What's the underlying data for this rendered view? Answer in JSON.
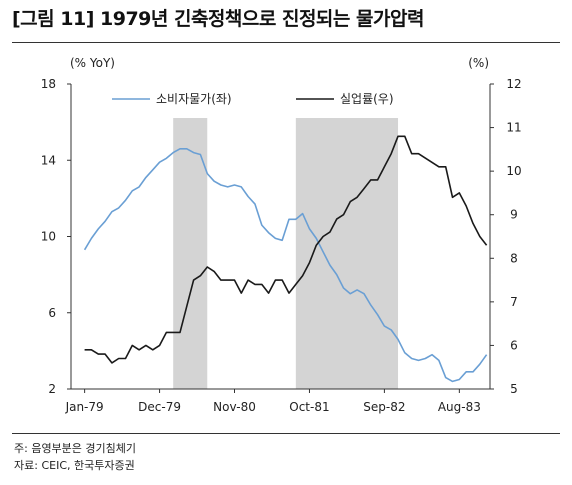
{
  "title": "[그림 11] 1979년 긴축정책으로 진정되는 물가압력",
  "notes": {
    "note": "주: 음영부분은 경기침체기",
    "source": "자료: CEIC, 한국투자증권"
  },
  "colors": {
    "cpi": "#6a9fd4",
    "unemp": "#1a1a1a",
    "shade": "#d4d4d4"
  },
  "chart_data": {
    "type": "line",
    "x_label_ticks": [
      "Jan-79",
      "Dec-79",
      "Nov-80",
      "Oct-81",
      "Sep-82",
      "Aug-83"
    ],
    "x_range": [
      "1979-01",
      "1983-12"
    ],
    "left_axis": {
      "unit": "(% YoY)",
      "ylim": [
        2,
        18
      ],
      "ticks": [
        "2",
        "6",
        "10",
        "14",
        "18"
      ]
    },
    "right_axis": {
      "unit": "(%)",
      "ylim": [
        5,
        12
      ],
      "ticks": [
        "5",
        "6",
        "7",
        "8",
        "9",
        "10",
        "11",
        "12"
      ]
    },
    "shaded_periods": [
      {
        "start": "1980-02",
        "end": "1980-07"
      },
      {
        "start": "1981-08",
        "end": "1982-11"
      }
    ],
    "series": [
      {
        "name": "소비자물가(좌)",
        "axis": "left",
        "x": [
          "1979-01",
          "1979-02",
          "1979-03",
          "1979-04",
          "1979-05",
          "1979-06",
          "1979-07",
          "1979-08",
          "1979-09",
          "1979-10",
          "1979-11",
          "1979-12",
          "1980-01",
          "1980-02",
          "1980-03",
          "1980-04",
          "1980-05",
          "1980-06",
          "1980-07",
          "1980-08",
          "1980-09",
          "1980-10",
          "1980-11",
          "1980-12",
          "1981-01",
          "1981-02",
          "1981-03",
          "1981-04",
          "1981-05",
          "1981-06",
          "1981-07",
          "1981-08",
          "1981-09",
          "1981-10",
          "1981-11",
          "1981-12",
          "1982-01",
          "1982-02",
          "1982-03",
          "1982-04",
          "1982-05",
          "1982-06",
          "1982-07",
          "1982-08",
          "1982-09",
          "1982-10",
          "1982-11",
          "1982-12",
          "1983-01",
          "1983-02",
          "1983-03",
          "1983-04",
          "1983-05",
          "1983-06",
          "1983-07",
          "1983-08",
          "1983-09",
          "1983-10",
          "1983-11",
          "1983-12"
        ],
        "values": [
          9.3,
          9.9,
          10.4,
          10.8,
          11.3,
          11.5,
          11.9,
          12.4,
          12.6,
          13.1,
          13.5,
          13.9,
          14.1,
          14.4,
          14.6,
          14.6,
          14.4,
          14.3,
          13.3,
          12.9,
          12.7,
          12.6,
          12.7,
          12.6,
          12.1,
          11.7,
          10.6,
          10.2,
          9.9,
          9.8,
          10.9,
          10.9,
          11.2,
          10.4,
          9.9,
          9.2,
          8.5,
          8.0,
          7.3,
          7.0,
          7.2,
          7.0,
          6.4,
          5.9,
          5.3,
          5.1,
          4.6,
          3.9,
          3.6,
          3.5,
          3.6,
          3.8,
          3.5,
          2.6,
          2.4,
          2.5,
          2.9,
          2.9,
          3.3,
          3.8
        ]
      },
      {
        "name": "실업률(우)",
        "axis": "right",
        "x": [
          "1979-01",
          "1979-02",
          "1979-03",
          "1979-04",
          "1979-05",
          "1979-06",
          "1979-07",
          "1979-08",
          "1979-09",
          "1979-10",
          "1979-11",
          "1979-12",
          "1980-01",
          "1980-02",
          "1980-03",
          "1980-04",
          "1980-05",
          "1980-06",
          "1980-07",
          "1980-08",
          "1980-09",
          "1980-10",
          "1980-11",
          "1980-12",
          "1981-01",
          "1981-02",
          "1981-03",
          "1981-04",
          "1981-05",
          "1981-06",
          "1981-07",
          "1981-08",
          "1981-09",
          "1981-10",
          "1981-11",
          "1981-12",
          "1982-01",
          "1982-02",
          "1982-03",
          "1982-04",
          "1982-05",
          "1982-06",
          "1982-07",
          "1982-08",
          "1982-09",
          "1982-10",
          "1982-11",
          "1982-12",
          "1983-01",
          "1983-02",
          "1983-03",
          "1983-04",
          "1983-05",
          "1983-06",
          "1983-07",
          "1983-08",
          "1983-09",
          "1983-10",
          "1983-11",
          "1983-12"
        ],
        "values": [
          5.9,
          5.9,
          5.8,
          5.8,
          5.6,
          5.7,
          5.7,
          6.0,
          5.9,
          6.0,
          5.9,
          6.0,
          6.3,
          6.3,
          6.3,
          6.9,
          7.5,
          7.6,
          7.8,
          7.7,
          7.5,
          7.5,
          7.5,
          7.2,
          7.5,
          7.4,
          7.4,
          7.2,
          7.5,
          7.5,
          7.2,
          7.4,
          7.6,
          7.9,
          8.3,
          8.5,
          8.6,
          8.9,
          9.0,
          9.3,
          9.4,
          9.6,
          9.8,
          9.8,
          10.1,
          10.4,
          10.8,
          10.8,
          10.4,
          10.4,
          10.3,
          10.2,
          10.1,
          10.1,
          9.4,
          9.5,
          9.2,
          8.8,
          8.5,
          8.3
        ]
      }
    ]
  }
}
